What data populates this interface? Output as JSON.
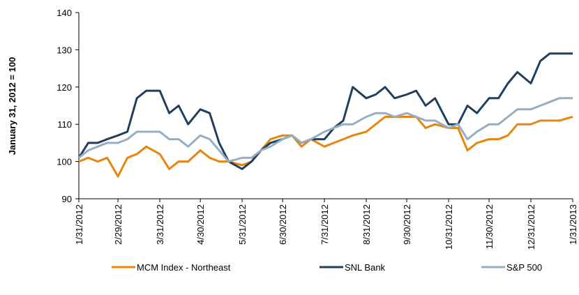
{
  "chart_data": {
    "type": "line",
    "y_label": "January 31, 2012 = 100",
    "x": [
      "1/31/2012",
      "2/7/2012",
      "2/14/2012",
      "2/21/2012",
      "2/29/2012",
      "3/7/2012",
      "3/14/2012",
      "3/21/2012",
      "3/31/2012",
      "4/7/2012",
      "4/14/2012",
      "4/21/2012",
      "4/30/2012",
      "5/7/2012",
      "5/14/2012",
      "5/21/2012",
      "5/31/2012",
      "6/7/2012",
      "6/14/2012",
      "6/21/2012",
      "6/30/2012",
      "7/7/2012",
      "7/14/2012",
      "7/21/2012",
      "7/31/2012",
      "8/7/2012",
      "8/14/2012",
      "8/21/2012",
      "8/31/2012",
      "9/7/2012",
      "9/14/2012",
      "9/21/2012",
      "9/30/2012",
      "10/7/2012",
      "10/14/2012",
      "10/21/2012",
      "10/31/2012",
      "11/7/2012",
      "11/14/2012",
      "11/21/2012",
      "11/30/2012",
      "12/7/2012",
      "12/14/2012",
      "12/21/2012",
      "12/31/2012",
      "1/7/2013",
      "1/14/2013",
      "1/21/2013",
      "1/31/2013"
    ],
    "series": [
      {
        "name": "MCM Index - Northeast",
        "color": "#e8850f",
        "values": [
          100,
          101,
          100,
          101,
          96,
          101,
          102,
          104,
          102,
          98,
          100,
          100,
          103,
          101,
          100,
          100,
          99,
          100,
          103,
          106,
          107,
          107,
          104,
          106,
          104,
          105,
          106,
          107,
          108,
          110,
          112,
          112,
          112,
          112,
          109,
          110,
          109,
          109,
          103,
          105,
          106,
          106,
          107,
          110,
          110,
          111,
          111,
          111,
          112
        ]
      },
      {
        "name": "SNL Bank",
        "color": "#1f3f5c",
        "values": [
          101,
          105,
          105,
          106,
          107,
          108,
          117,
          119,
          119,
          113,
          115,
          110,
          114,
          113,
          105,
          100,
          98,
          100,
          103,
          105,
          106,
          107,
          105,
          106,
          106,
          109,
          111,
          120,
          117,
          118,
          120,
          117,
          118,
          119,
          115,
          117,
          110,
          110,
          115,
          113,
          117,
          117,
          121,
          124,
          121,
          127,
          129,
          129,
          129
        ]
      },
      {
        "name": "S&P 500",
        "color": "#95aec4",
        "values": [
          101,
          103,
          104,
          105,
          105,
          106,
          108,
          108,
          108,
          106,
          106,
          104,
          107,
          106,
          103,
          100,
          101,
          101,
          103,
          104,
          106,
          107,
          105,
          106,
          108,
          109,
          110,
          110,
          112,
          113,
          113,
          112,
          113,
          112,
          111,
          111,
          109,
          110,
          106,
          108,
          110,
          110,
          112,
          114,
          114,
          115,
          116,
          117,
          117
        ]
      }
    ],
    "xlim": [
      "1/31/2012",
      "1/31/2013"
    ],
    "xticks": [
      "1/31/2012",
      "2/29/2012",
      "3/31/2012",
      "4/30/2012",
      "5/31/2012",
      "6/30/2012",
      "7/31/2012",
      "8/31/2012",
      "9/30/2012",
      "10/31/2012",
      "11/30/2012",
      "12/31/2012",
      "1/31/2013"
    ],
    "ylim": [
      90,
      140
    ],
    "yticks": [
      90,
      100,
      110,
      120,
      130,
      140
    ],
    "grid": false,
    "legend": "bottom"
  }
}
